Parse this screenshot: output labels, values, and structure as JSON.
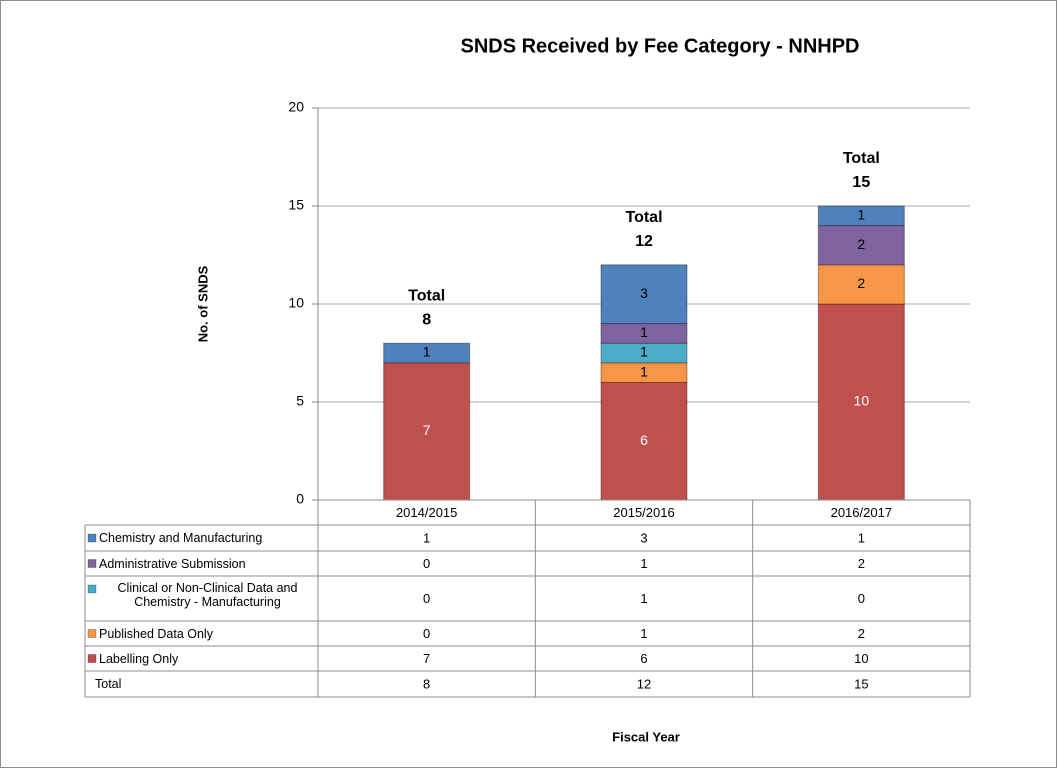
{
  "chart_data": {
    "type": "stacked_bar",
    "title": "SNDS Received by Fee Category - NNHPD",
    "x_label": "Fiscal Year",
    "y_label": "No. of SNDS",
    "categories": [
      "2014/2015",
      "2015/2016",
      "2016/2017"
    ],
    "series": [
      {
        "name": "Labelling Only",
        "color": "#c0504d",
        "values": [
          7,
          6,
          10
        ]
      },
      {
        "name": "Published Data Only",
        "color": "#f79646",
        "values": [
          0,
          1,
          2
        ]
      },
      {
        "name": "Clinical or Non-Clinical Data and Chemistry - Manufacturing",
        "color": "#4bacc6",
        "values": [
          0,
          1,
          0
        ]
      },
      {
        "name": "Administrative Submission",
        "color": "#8064a2",
        "values": [
          0,
          1,
          2
        ]
      },
      {
        "name": "Chemistry and Manufacturing",
        "color": "#4f81bd",
        "values": [
          1,
          3,
          1
        ]
      }
    ],
    "totals": {
      "label": "Total",
      "values": [
        8,
        12,
        15
      ]
    },
    "ylim": [
      0,
      20
    ],
    "yticks": [
      0,
      5,
      10,
      15,
      20
    ],
    "grid": true
  }
}
